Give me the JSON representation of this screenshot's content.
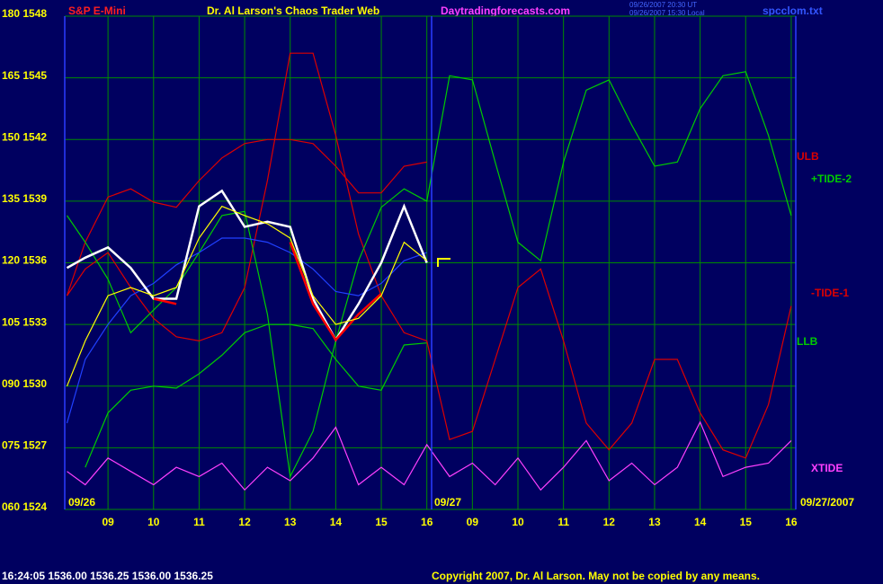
{
  "chart_data": {
    "type": "line",
    "symbol": "S&P E-Mini",
    "title": "Dr. Al Larson's Chaos Trader Web",
    "site": "Daytradingforecasts.com",
    "timestamp_ut": "09/26/2007 20:30 UT",
    "timestamp_local": "09/26/2007 15:30 Local",
    "file": "spcclom.txt",
    "quote": "16:24:05  1536.00 1536.25 1536.00 1536.25",
    "copyright": "Copyright 2007, Dr. Al Larson. May not be copied by any means.",
    "dates": [
      "09/26",
      "09/27",
      "09/27/2007"
    ],
    "grid": true,
    "xlim": [
      0.05,
      16.1
    ],
    "ylim": [
      1524,
      1548
    ],
    "xticks": [
      {
        "value": 1,
        "label": "09"
      },
      {
        "value": 2,
        "label": "10"
      },
      {
        "value": 3,
        "label": "11"
      },
      {
        "value": 4,
        "label": "12"
      },
      {
        "value": 5,
        "label": "13"
      },
      {
        "value": 6,
        "label": "14"
      },
      {
        "value": 7,
        "label": "15"
      },
      {
        "value": 8,
        "label": "16"
      },
      {
        "value": 9,
        "label": "09"
      },
      {
        "value": 10,
        "label": "10"
      },
      {
        "value": 11,
        "label": "11"
      },
      {
        "value": 12,
        "label": "12"
      },
      {
        "value": 13,
        "label": "13"
      },
      {
        "value": 14,
        "label": "14"
      },
      {
        "value": 15,
        "label": "15"
      },
      {
        "value": 16,
        "label": "16"
      }
    ],
    "yticks": [
      {
        "value": 1524,
        "label": "060 1524"
      },
      {
        "value": 1527,
        "label": "075 1527"
      },
      {
        "value": 1530,
        "label": "090 1530"
      },
      {
        "value": 1533,
        "label": "105 1533"
      },
      {
        "value": 1536,
        "label": "120 1536"
      },
      {
        "value": 1539,
        "label": "135 1539"
      },
      {
        "value": 1542,
        "label": "150 1542"
      },
      {
        "value": 1545,
        "label": "165 1545"
      },
      {
        "value": 1548,
        "label": "180 1548"
      }
    ],
    "x": [
      0.1,
      0.5,
      1,
      1.5,
      2,
      2.5,
      3,
      3.5,
      4,
      4.5,
      5,
      5.5,
      6,
      6.5,
      7,
      7.5,
      8,
      8.5,
      9,
      9.5,
      10,
      10.5,
      11,
      11.5,
      12,
      12.5,
      13,
      13.5,
      14,
      14.5,
      15,
      15.5,
      16
    ],
    "series": [
      {
        "name": "LLB",
        "color": "#00cc00",
        "values": [
          null,
          1526.05,
          1528.7,
          1529.8,
          1530,
          1529.9,
          1530.6,
          1531.5,
          1532.6,
          1533,
          1533,
          1532.8,
          1531.3,
          1530,
          1529.8,
          1532,
          1532.1,
          null,
          null,
          null,
          null,
          null,
          null,
          null,
          null,
          null,
          null,
          null,
          null,
          null,
          null,
          null,
          null
        ]
      },
      {
        "name": "ULB",
        "color": "#dd0000",
        "values": [
          1534.4,
          1537,
          1539.2,
          1539.6,
          1538.95,
          1538.7,
          1540,
          1541.1,
          1541.8,
          1542,
          1542,
          1541.8,
          1540.7,
          1539.4,
          1539.4,
          1540.7,
          1540.9,
          null,
          null,
          null,
          null,
          null,
          null,
          null,
          null,
          null,
          null,
          null,
          null,
          null,
          null,
          null,
          null
        ]
      },
      {
        "name": "-TIDE-1",
        "color": "#dd0000",
        "values": [
          1534.4,
          1535.7,
          1536.5,
          1534.8,
          1533.3,
          1532.4,
          1532.2,
          1532.6,
          1534.8,
          1540,
          1546.2,
          1546.2,
          1542.2,
          1537.4,
          1534.4,
          1532.6,
          1532.2,
          1527.4,
          1527.8,
          1531.3,
          1534.8,
          1535.7,
          1532.2,
          1528.2,
          1526.9,
          1528.2,
          1531.3,
          1531.3,
          1528.7,
          1526.9,
          1526.5,
          1529.1,
          1533.9
        ]
      },
      {
        "name": "+TIDE-2",
        "color": "#00cc00",
        "values": [
          1538.3,
          1537,
          1535.2,
          1532.6,
          1533.7,
          1534.8,
          1536.5,
          1538.3,
          1538.5,
          1533.5,
          1525.6,
          1527.8,
          1532.2,
          1536.1,
          1538.7,
          1539.6,
          1539,
          1545.1,
          1544.9,
          1540.9,
          1537,
          1536.1,
          1540.9,
          1544.4,
          1544.9,
          1542.7,
          1540.7,
          1540.9,
          1543.5,
          1545.1,
          1545.3,
          1542.2,
          1538.3
        ]
      },
      {
        "name": "XTIDE",
        "color": "#ff40ff",
        "values": [
          1525.85,
          1525.2,
          1526.5,
          1525.85,
          1525.2,
          1526.05,
          1525.6,
          1526.25,
          1524.95,
          1526.05,
          1525.4,
          1526.5,
          1528,
          1525.2,
          1526.05,
          1525.2,
          1527.15,
          1525.6,
          1526.25,
          1525.2,
          1526.5,
          1524.95,
          1526.05,
          1527.35,
          1525.4,
          1526.25,
          1525.2,
          1526.05,
          1528.25,
          1525.6,
          1526.05,
          1526.25,
          1527.35
        ]
      },
      {
        "color": "#2040ff",
        "values": [
          1528.2,
          1531.3,
          1533,
          1534.4,
          1535,
          1535.9,
          1536.5,
          1537.2,
          1537.2,
          1537,
          1536.5,
          1535.7,
          1534.6,
          1534.4,
          1535,
          1536.1,
          1536.5,
          null,
          null,
          null,
          null,
          null,
          null,
          null,
          null,
          null,
          null,
          null,
          null,
          null,
          null,
          null,
          null
        ]
      },
      {
        "color": "#ffffff",
        "values": [
          1535.75,
          1536.25,
          1536.75,
          1535.75,
          1534.25,
          1534.25,
          1538.75,
          1539.5,
          1537.75,
          1538,
          1537.75,
          1534.25,
          1532.25,
          1534,
          1536,
          1538.75,
          1536,
          null,
          null,
          null,
          null,
          null,
          null,
          null,
          null,
          null,
          null,
          null,
          null,
          null,
          null,
          null,
          null
        ]
      },
      {
        "color": "#ff0000",
        "values": [
          null,
          null,
          null,
          null,
          1534.25,
          1534,
          null,
          null,
          null,
          null,
          1537,
          1534,
          1532.25,
          1533.5,
          1534.5,
          null,
          null,
          null,
          null,
          null,
          null,
          null,
          null,
          null,
          null,
          null,
          null,
          null,
          null,
          null,
          null,
          null,
          null
        ]
      },
      {
        "color": "#ffff00",
        "values": [
          1530,
          1532.2,
          1534.4,
          1534.8,
          1534.4,
          1534.8,
          1537.2,
          1538.75,
          1538.3,
          1537.9,
          1537.2,
          1534.4,
          1533,
          1533.3,
          1534.4,
          1537,
          1536.1,
          null,
          null,
          null,
          null,
          null,
          null,
          null,
          null,
          null,
          null,
          null,
          null,
          null,
          null,
          null,
          null
        ]
      }
    ]
  }
}
